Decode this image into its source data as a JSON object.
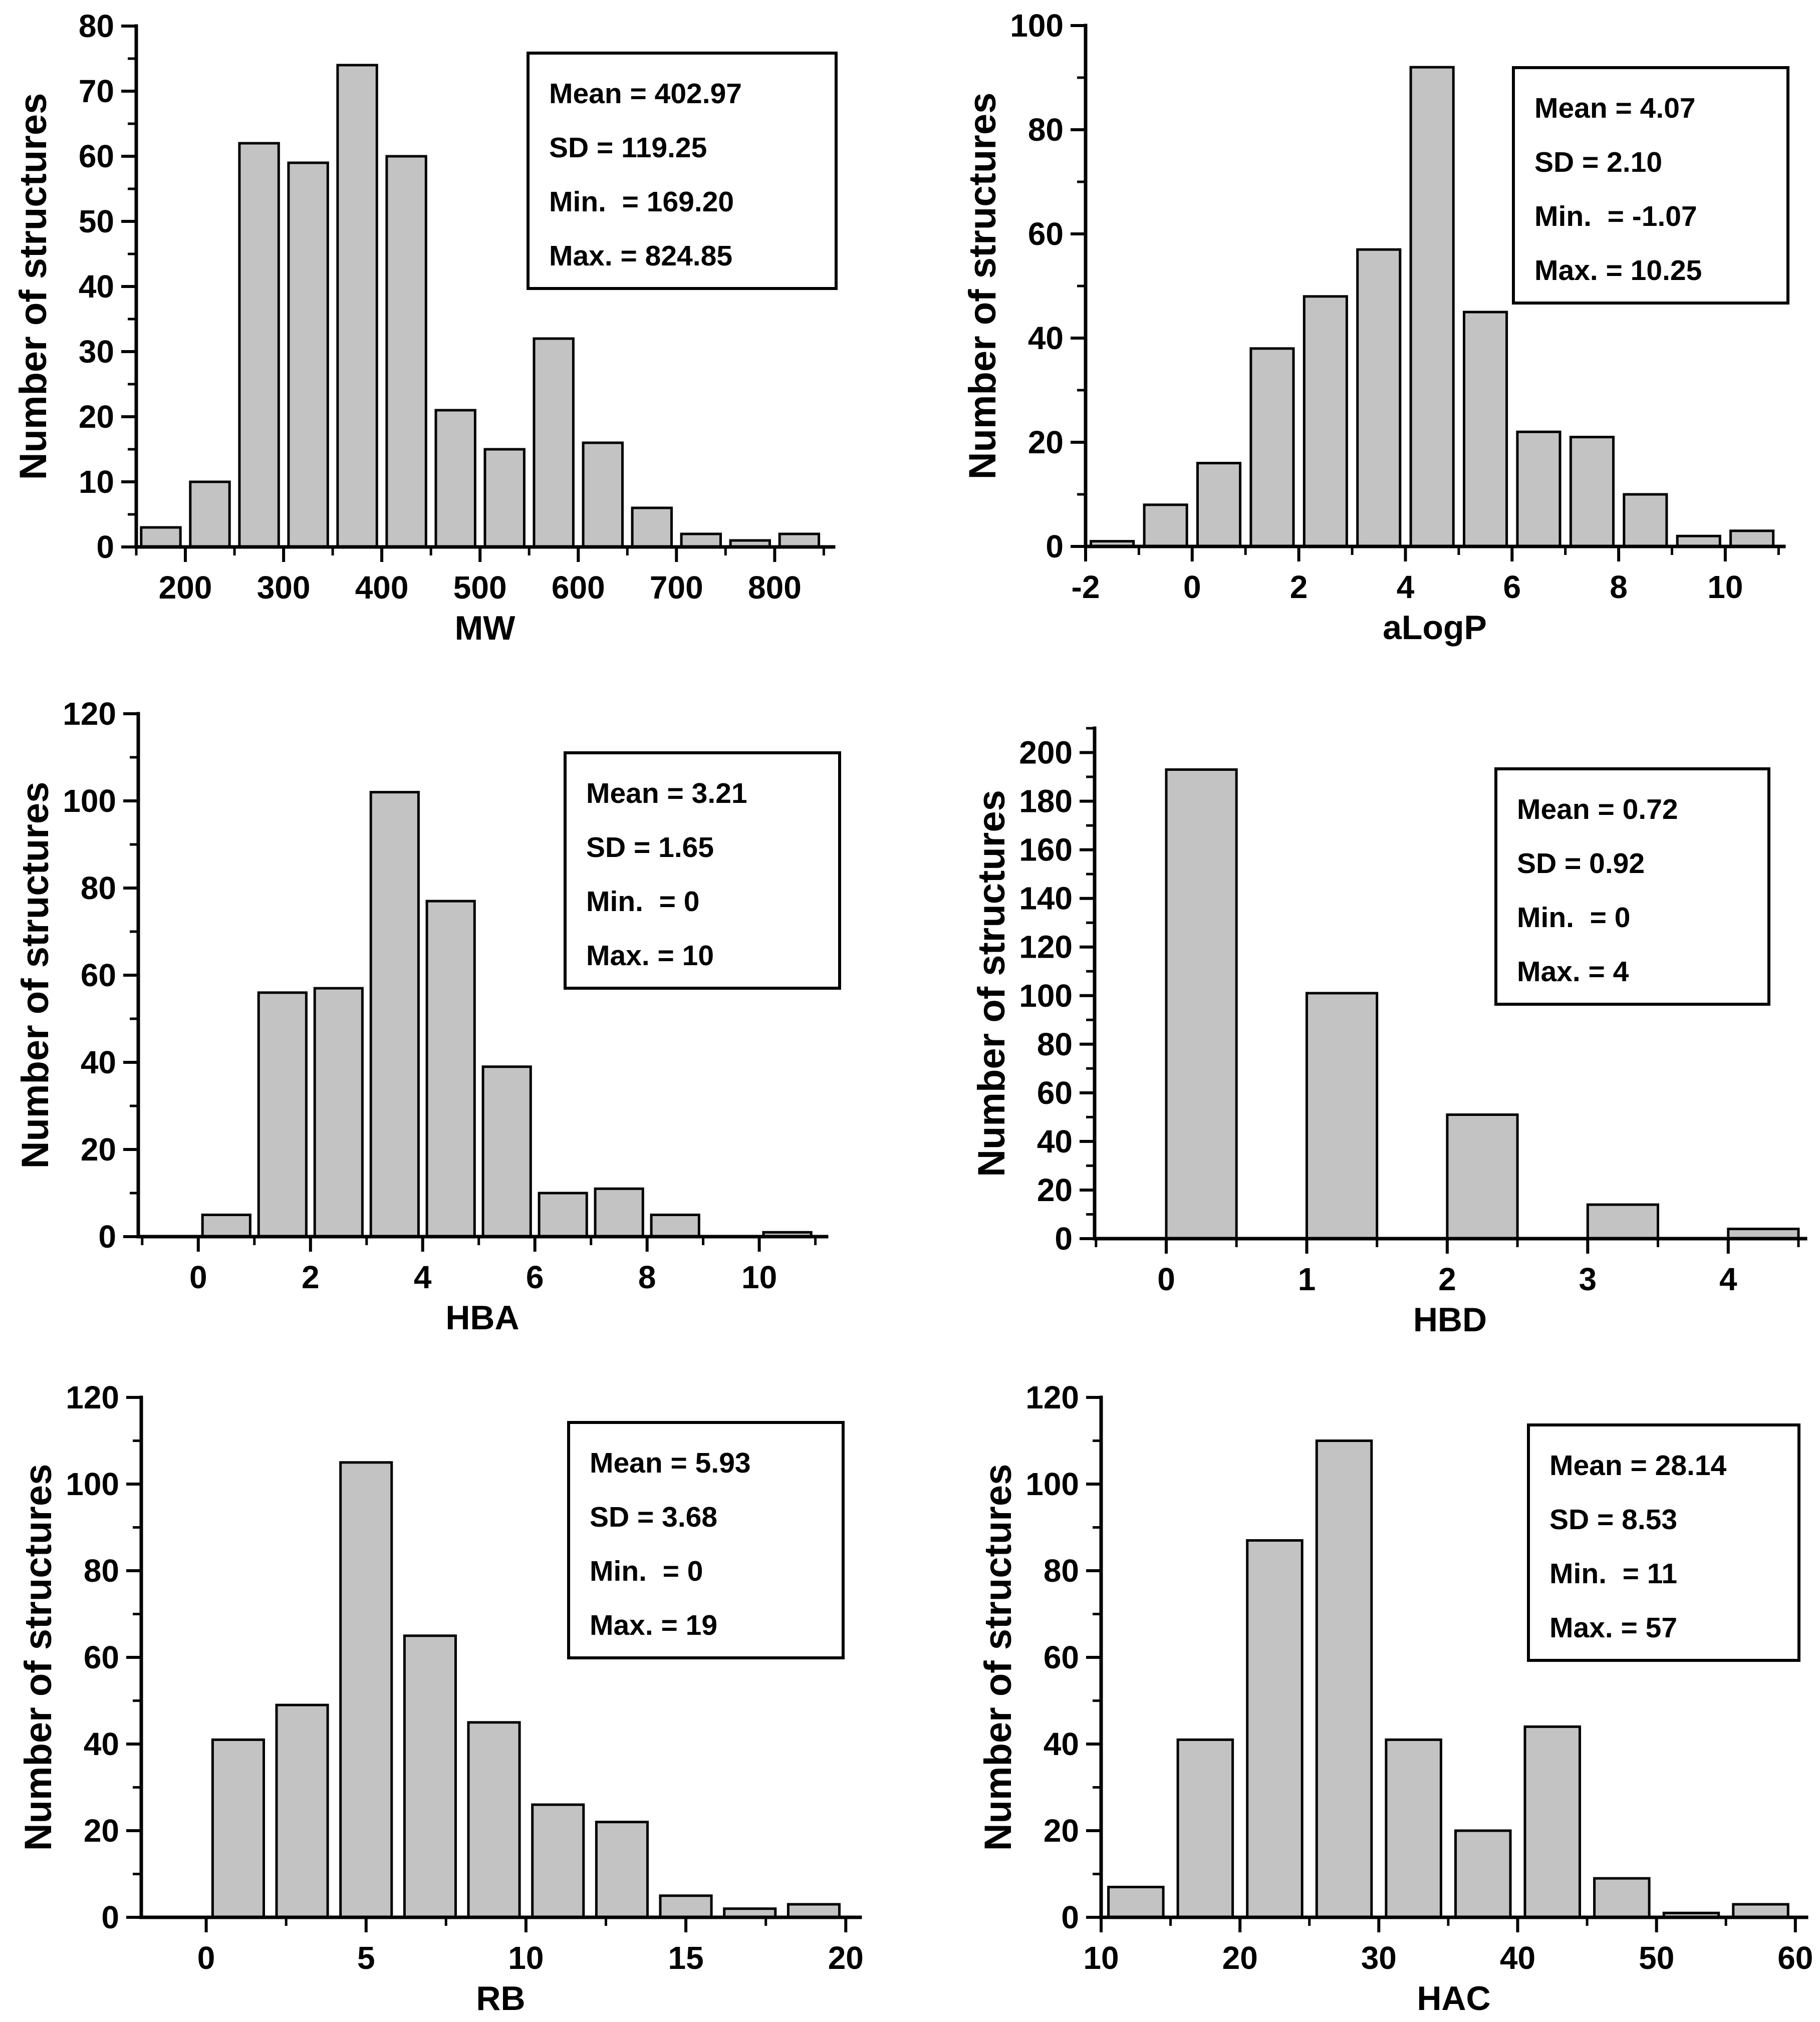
{
  "figure": {
    "background": "#ffffff",
    "bar_fill": "#c3c3c3",
    "line_color": "#000000",
    "ylabel_shared": "Number of structures"
  },
  "chart_data": [
    {
      "type": "bar",
      "id": "mw",
      "title": "",
      "xlabel": "MW",
      "ylabel": "Number of structures",
      "bin_start": 150,
      "bin_width": 50,
      "values": [
        3,
        10,
        62,
        59,
        74,
        60,
        21,
        15,
        32,
        16,
        6,
        2,
        1,
        2
      ],
      "xticks": [
        200,
        300,
        400,
        500,
        600,
        700,
        800
      ],
      "yticks": [
        0,
        10,
        20,
        30,
        40,
        50,
        60,
        70,
        80
      ],
      "xlim": [
        150,
        860
      ],
      "ylim": [
        0,
        80
      ],
      "grid": false,
      "annotations": [
        "Mean = 402.97",
        "SD = 119.25",
        "Min.  = 169.20",
        "Max. = 824.85"
      ]
    },
    {
      "type": "bar",
      "id": "alogp",
      "title": "",
      "xlabel": "aLogP",
      "ylabel": "Number of structures",
      "bin_start": -2,
      "bin_width": 1,
      "values": [
        1,
        8,
        16,
        38,
        48,
        57,
        92,
        45,
        22,
        21,
        10,
        2,
        3
      ],
      "xticks": [
        -2,
        0,
        2,
        4,
        6,
        8,
        10
      ],
      "yticks": [
        0,
        20,
        40,
        60,
        80,
        100
      ],
      "xlim": [
        -2,
        11.1
      ],
      "ylim": [
        0,
        100
      ],
      "grid": false,
      "annotations": [
        "Mean = 4.07",
        "SD = 2.10",
        "Min.  = -1.07",
        "Max. = 10.25"
      ]
    },
    {
      "type": "bar",
      "id": "hba",
      "title": "",
      "xlabel": "HBA",
      "ylabel": "Number of structures",
      "bin_start": 0,
      "bin_width": 1,
      "values": [
        5,
        56,
        57,
        102,
        77,
        39,
        10,
        11,
        5,
        0,
        1
      ],
      "xticks": [
        0,
        2,
        4,
        6,
        8,
        10
      ],
      "yticks": [
        0,
        20,
        40,
        60,
        80,
        100,
        120
      ],
      "xlim": [
        -1.07,
        11.2
      ],
      "ylim": [
        0,
        120
      ],
      "grid": false,
      "annotations": [
        "Mean = 3.21",
        "SD = 1.65",
        "Min.  = 0",
        "Max. = 10"
      ]
    },
    {
      "type": "bar",
      "id": "hbd",
      "title": "",
      "xlabel": "HBD",
      "ylabel": "Number of structures",
      "bin_start": 0,
      "bin_width": 1,
      "values": [
        193,
        101,
        51,
        14,
        4
      ],
      "xticks": [
        0,
        1,
        2,
        3,
        4
      ],
      "yticks": [
        0,
        20,
        40,
        60,
        80,
        100,
        120,
        140,
        160,
        180,
        200
      ],
      "xlim": [
        -0.51,
        4.55
      ],
      "ylim": [
        0,
        210
      ],
      "grid": false,
      "annotations": [
        "Mean = 0.72",
        "SD = 0.92",
        "Min.  = 0",
        "Max. = 4"
      ]
    },
    {
      "type": "bar",
      "id": "rb",
      "title": "",
      "xlabel": "RB",
      "ylabel": "Number of structures",
      "bin_start": 0,
      "bin_width": 2,
      "values": [
        41,
        49,
        105,
        65,
        45,
        26,
        22,
        5,
        2,
        3
      ],
      "xticks": [
        0,
        5,
        10,
        15,
        20
      ],
      "yticks": [
        0,
        20,
        40,
        60,
        80,
        100,
        120
      ],
      "xlim": [
        -2.03,
        20.45
      ],
      "ylim": [
        0,
        120
      ],
      "grid": false,
      "annotations": [
        "Mean = 5.93",
        "SD = 3.68",
        "Min.  = 0",
        "Max. = 19"
      ]
    },
    {
      "type": "bar",
      "id": "hac",
      "title": "",
      "xlabel": "HAC",
      "ylabel": "Number of structures",
      "bin_start": 10,
      "bin_width": 5,
      "values": [
        7,
        41,
        87,
        110,
        41,
        20,
        44,
        9,
        1,
        3
      ],
      "xticks": [
        10,
        20,
        30,
        40,
        50,
        60
      ],
      "yticks": [
        0,
        20,
        40,
        60,
        80,
        100,
        120
      ],
      "xlim": [
        10,
        60.8
      ],
      "ylim": [
        0,
        120
      ],
      "grid": false,
      "annotations": [
        "Mean = 28.14",
        "SD = 8.53",
        "Min.  = 11",
        "Max. = 57"
      ]
    }
  ]
}
